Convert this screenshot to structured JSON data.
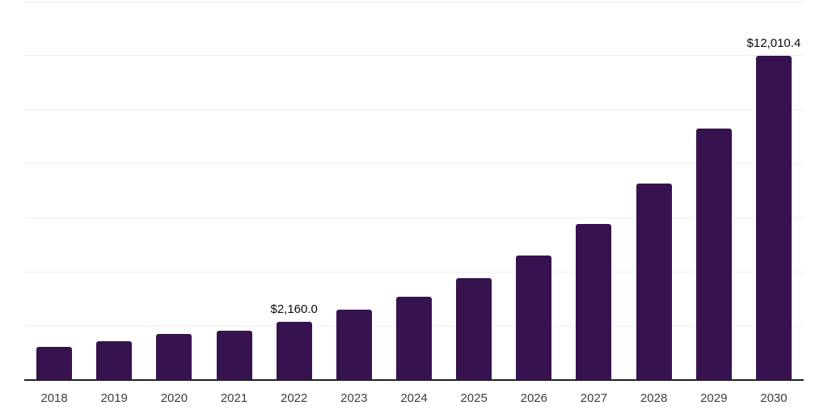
{
  "chart_data": {
    "type": "bar",
    "title": "",
    "xlabel": "",
    "ylabel": "",
    "categories": [
      "2018",
      "2019",
      "2020",
      "2021",
      "2022",
      "2023",
      "2024",
      "2025",
      "2026",
      "2027",
      "2028",
      "2029",
      "2030"
    ],
    "values": [
      1225,
      1435,
      1705,
      1820,
      2160,
      2600,
      3075,
      3765,
      4600,
      5765,
      7260,
      9290,
      12010.4
    ],
    "data_labels": [
      "",
      "",
      "",
      "",
      "$2,160.0",
      "",
      "",
      "",
      "",
      "",
      "",
      "",
      "$12,010.4"
    ],
    "ylim": [
      0,
      14000
    ],
    "gridline_interval": 2000,
    "grid": "horizontal",
    "legend": "none",
    "y_axis_labels_visible": false
  },
  "style": {
    "bar_color": "#36124E",
    "grid_color": "#efefef",
    "axis_color": "#222222",
    "tick_label_color": "#3d3d3d",
    "data_label_color": "#0a0a0a",
    "background_color": "#ffffff"
  }
}
